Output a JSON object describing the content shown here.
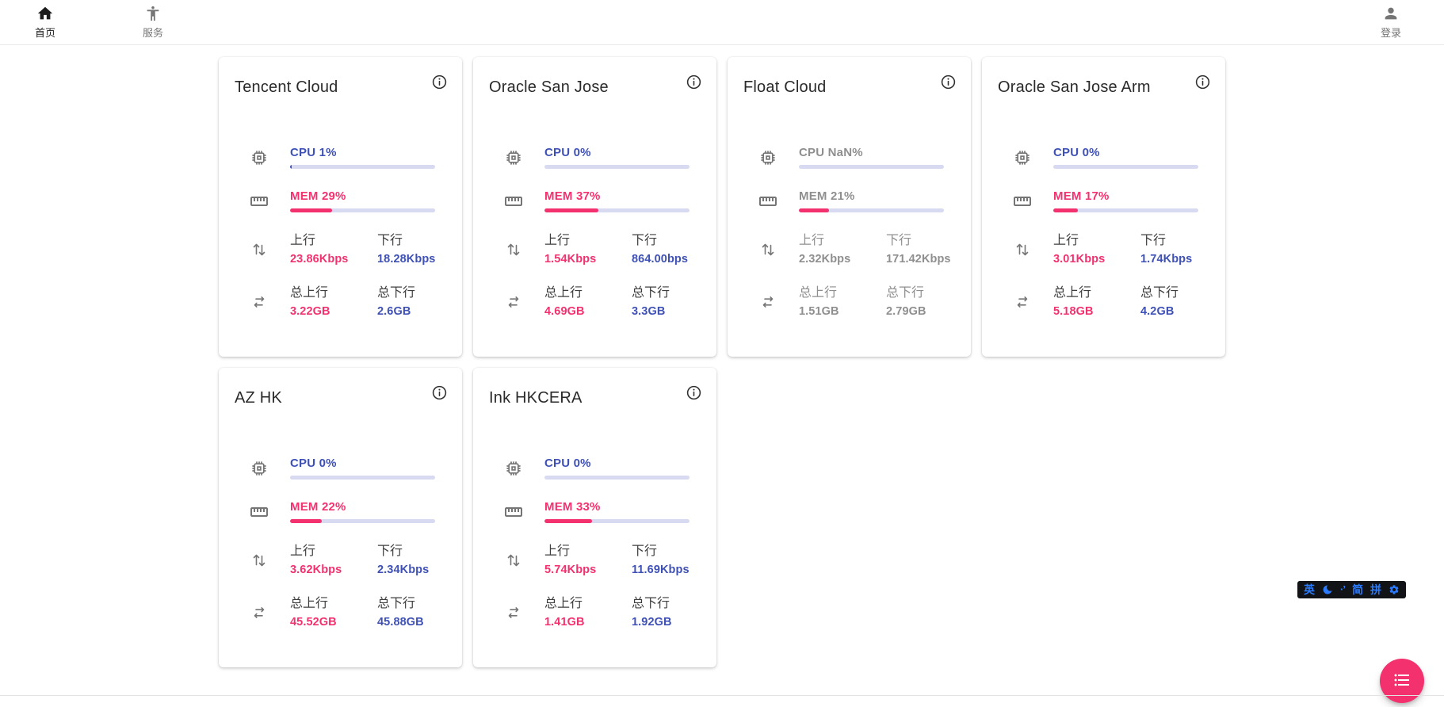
{
  "colors": {
    "indigo": "#3f51b5",
    "pink": "#f4316f",
    "track": "#d7daf1",
    "offline": "#8f8f8f",
    "icon-gray": "#757575",
    "ime-blue": "#2b7bfe",
    "ime-bg": "#121316"
  },
  "nav": {
    "home": "首页",
    "services": "服务",
    "login": "登录"
  },
  "stat_labels": {
    "up": "上行",
    "down": "下行",
    "total_up": "总上行",
    "total_down": "总下行"
  },
  "servers": [
    {
      "name": "Tencent Cloud",
      "cpu_text": "CPU 1%",
      "cpu_pct": 1,
      "mem_text": "MEM 29%",
      "mem_pct": 29,
      "up": "23.86Kbps",
      "down": "18.28Kbps",
      "total_up": "3.22GB",
      "total_down": "2.6GB",
      "offline": false
    },
    {
      "name": "Oracle San Jose",
      "cpu_text": "CPU 0%",
      "cpu_pct": 0,
      "mem_text": "MEM 37%",
      "mem_pct": 37,
      "up": "1.54Kbps",
      "down": "864.00bps",
      "total_up": "4.69GB",
      "total_down": "3.3GB",
      "offline": false
    },
    {
      "name": "Float Cloud",
      "cpu_text": "CPU NaN%",
      "cpu_pct": 0,
      "mem_text": "MEM 21%",
      "mem_pct": 21,
      "up": "2.32Kbps",
      "down": "171.42Kbps",
      "total_up": "1.51GB",
      "total_down": "2.79GB",
      "offline": true
    },
    {
      "name": "Oracle San Jose Arm",
      "cpu_text": "CPU 0%",
      "cpu_pct": 0,
      "mem_text": "MEM 17%",
      "mem_pct": 17,
      "up": "3.01Kbps",
      "down": "1.74Kbps",
      "total_up": "5.18GB",
      "total_down": "4.2GB",
      "offline": false
    },
    {
      "name": "AZ HK",
      "cpu_text": "CPU 0%",
      "cpu_pct": 0,
      "mem_text": "MEM 22%",
      "mem_pct": 22,
      "up": "3.62Kbps",
      "down": "2.34Kbps",
      "total_up": "45.52GB",
      "total_down": "45.88GB",
      "offline": false
    },
    {
      "name": "Ink HKCERA",
      "cpu_text": "CPU 0%",
      "cpu_pct": 0,
      "mem_text": "MEM 33%",
      "mem_pct": 33,
      "up": "5.74Kbps",
      "down": "11.69Kbps",
      "total_up": "1.41GB",
      "total_down": "1.92GB",
      "offline": false
    }
  ],
  "ime": {
    "lang": "英",
    "punct": "·’",
    "simplified": "简",
    "pinyin": "拼"
  }
}
